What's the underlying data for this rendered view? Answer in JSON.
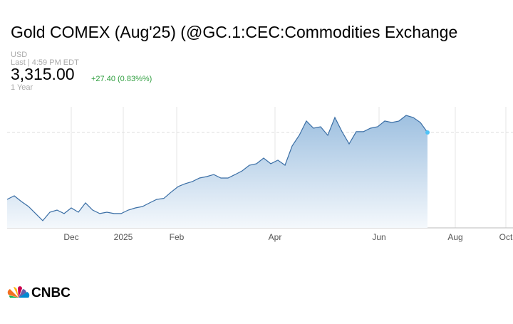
{
  "header": {
    "title": "Gold COMEX (Aug'25) (@GC.1:CEC:Commodities Exchange",
    "currency": "USD",
    "last_time": "Last | 4:59 PM EDT",
    "price": "3,315.00",
    "change": "+27.40 (0.83%%)",
    "range": "1 Year"
  },
  "chart_data": {
    "type": "area",
    "values": [
      2782,
      2810,
      2765,
      2725,
      2669,
      2612,
      2680,
      2697,
      2669,
      2714,
      2680,
      2754,
      2697,
      2669,
      2680,
      2669,
      2669,
      2697,
      2714,
      2725,
      2754,
      2782,
      2790,
      2839,
      2884,
      2907,
      2924,
      2952,
      2963,
      2980,
      2952,
      2952,
      2980,
      3009,
      3054,
      3066,
      3111,
      3066,
      3094,
      3054,
      3207,
      3292,
      3406,
      3349,
      3360,
      3292,
      3434,
      3321,
      3224,
      3321,
      3321,
      3349,
      3360,
      3406,
      3394,
      3406,
      3451,
      3434,
      3394,
      3315
    ],
    "color": "#3a6ea5",
    "xlim": [
      0,
      71
    ],
    "xticks": [
      {
        "value": 9,
        "label": "Dec"
      },
      {
        "value": 16.3,
        "label": "2025"
      },
      {
        "value": 23.8,
        "label": "Feb"
      },
      {
        "value": 37.6,
        "label": "Apr"
      },
      {
        "value": 52.2,
        "label": "Jun"
      },
      {
        "value": 62.9,
        "label": "Aug"
      },
      {
        "value": 70,
        "label": "Oct"
      }
    ],
    "ylim": [
      2555,
      3519
    ],
    "last_value": 3315,
    "grid": true
  },
  "logo": "CNBC"
}
